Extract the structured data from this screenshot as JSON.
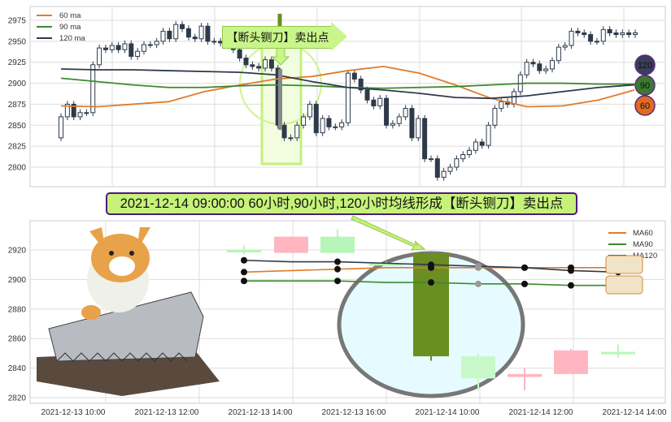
{
  "chart_data": [
    {
      "type": "candlestick",
      "title": "",
      "ylim": [
        2780,
        2992
      ],
      "yticks": [
        2800,
        2825,
        2850,
        2875,
        2900,
        2925,
        2950,
        2975
      ],
      "grid": true,
      "legend_placement": "top-left",
      "first_open": 2835,
      "closes": [
        2860,
        2875,
        2860,
        2865,
        2865,
        2922,
        2942,
        2940,
        2945,
        2940,
        2947,
        2932,
        2938,
        2946,
        2946,
        2950,
        2962,
        2953,
        2970,
        2965,
        2955,
        2953,
        2968,
        2950,
        2950,
        2948,
        2945,
        2940,
        2930,
        2922,
        2920,
        2918,
        2928,
        2918,
        2850,
        2835,
        2835,
        2850,
        2860,
        2875,
        2841,
        2858,
        2848,
        2848,
        2853,
        2912,
        2905,
        2892,
        2880,
        2873,
        2882,
        2850,
        2852,
        2860,
        2870,
        2835,
        2858,
        2810,
        2810,
        2788,
        2795,
        2800,
        2810,
        2815,
        2820,
        2830,
        2826,
        2850,
        2870,
        2878,
        2875,
        2890,
        2910,
        2925,
        2923,
        2915,
        2917,
        2927,
        2943,
        2945,
        2962,
        2960,
        2958,
        2950,
        2950,
        2964,
        2960,
        2958,
        2960,
        2958,
        2960
      ],
      "series": [
        {
          "name": "60 ma",
          "color": "#e07b2a",
          "values": [
            2873,
            2872,
            2875,
            2878,
            2890,
            2898,
            2905,
            2908,
            2915,
            2920,
            2912,
            2898,
            2882,
            2872,
            2873,
            2880,
            2892
          ]
        },
        {
          "name": "90 ma",
          "color": "#3c8a2e",
          "values": [
            2906,
            2902,
            2898,
            2895,
            2895,
            2897,
            2898,
            2897,
            2895,
            2894,
            2895,
            2896,
            2898,
            2900,
            2900,
            2899,
            2899
          ]
        },
        {
          "name": "120 ma",
          "color": "#2e3a4a",
          "values": [
            2917,
            2916,
            2916,
            2915,
            2914,
            2913,
            2910,
            2902,
            2895,
            2892,
            2888,
            2883,
            2882,
            2885,
            2890,
            2895,
            2898
          ]
        }
      ],
      "ma_badges": [
        {
          "label": "120",
          "color": "#3d3d5c"
        },
        {
          "label": "90",
          "color": "#3a7a30"
        },
        {
          "label": "60",
          "color": "#e06a20"
        }
      ],
      "annotation": "【断头铡刀】卖出点",
      "highlight_color": "#6b8e23"
    },
    {
      "type": "candlestick",
      "title": "",
      "ylim": [
        2816,
        2936
      ],
      "yticks": [
        2820,
        2840,
        2860,
        2880,
        2900,
        2920
      ],
      "xticks": [
        "2021-12-13 10:00",
        "2021-12-13 12:00",
        "2021-12-13 14:00",
        "2021-12-13 16:00",
        "2021-12-14 10:00",
        "2021-12-14 12:00",
        "2021-12-14 14:00"
      ],
      "grid": true,
      "legend_placement": "top-right",
      "candles": [
        {
          "o": 2919,
          "h": 2923,
          "l": 2917,
          "c": 2920,
          "color": "#b8f5b8"
        },
        {
          "o": 2918,
          "h": 2929,
          "l": 2918,
          "c": 2929,
          "color": "#ffb6c1"
        },
        {
          "o": 2929,
          "h": 2934,
          "l": 2918,
          "c": 2918,
          "color": "#b8f5b8"
        },
        {
          "o": 2911,
          "h": 2912,
          "l": 2910,
          "c": 2911,
          "color": "#b8f5b8"
        },
        {
          "o": 2918,
          "h": 2918,
          "l": 2845,
          "c": 2848,
          "color": "#6b8e23"
        },
        {
          "o": 2848,
          "h": 2850,
          "l": 2825,
          "c": 2833,
          "color": "#c8f8c8"
        },
        {
          "o": 2836,
          "h": 2840,
          "l": 2825,
          "c": 2834,
          "color": "#ffb6c1"
        },
        {
          "o": 2836,
          "h": 2853,
          "l": 2836,
          "c": 2852,
          "color": "#ffb6c1"
        },
        {
          "o": 2851,
          "h": 2856,
          "l": 2847,
          "c": 2851,
          "color": "#b8f5b8"
        }
      ],
      "series": [
        {
          "name": "MA60",
          "color": "#e07b2a",
          "values": [
            2905,
            2906,
            2907,
            2908,
            2908,
            2908,
            2908,
            2908,
            2908
          ]
        },
        {
          "name": "MA90",
          "color": "#3c8a2e",
          "values": [
            2899,
            2899,
            2899,
            2898,
            2898,
            2897,
            2897,
            2896,
            2896
          ]
        },
        {
          "name": "MA120",
          "color": "#2e3a4a",
          "values": [
            2913,
            2912,
            2912,
            2911,
            2910,
            2909,
            2908,
            2906,
            2905
          ]
        }
      ]
    }
  ],
  "banner": {
    "text": "2021-12-14 09:00:00 60小时,90小时,120小时均线形成【断头铡刀】卖出点"
  }
}
